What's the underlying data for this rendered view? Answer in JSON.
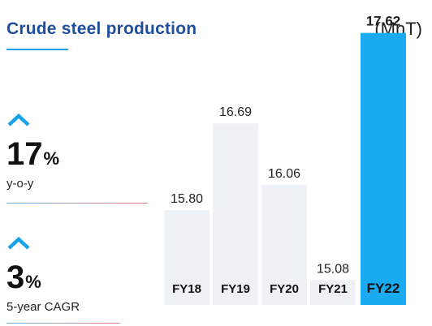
{
  "title": "Crude steel production",
  "unit": "(MnT)",
  "stats": [
    {
      "value": "17",
      "suffix": "%",
      "label": "y-o-y"
    },
    {
      "value": "3",
      "suffix": "%",
      "label": "5-year CAGR"
    }
  ],
  "colors": {
    "title": "#1f4e9c",
    "accent": "#1aa3e8",
    "bar_default": "#eef1f5",
    "bar_highlight": "#19aaf0"
  },
  "icons": [
    "chevron-up-icon",
    "chevron-up-icon"
  ],
  "chart_data": {
    "type": "bar",
    "categories": [
      "FY18",
      "FY19",
      "FY20",
      "FY21",
      "FY22"
    ],
    "values": [
      15.8,
      16.69,
      16.06,
      15.08,
      17.62
    ],
    "value_labels": [
      "15.80",
      "16.69",
      "16.06",
      "15.08",
      "17.62"
    ],
    "highlight": "FY22",
    "title": "Crude steel production",
    "ylabel": "(MnT)"
  }
}
